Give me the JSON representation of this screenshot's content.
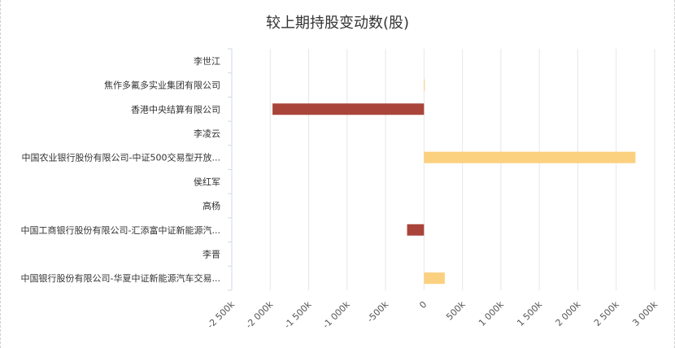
{
  "chart_data": {
    "type": "bar",
    "orientation": "horizontal",
    "title": "较上期持股变动数(股)",
    "categories": [
      "李世江",
      "焦作多氟多实业集团有限公司",
      "香港中央结算有限公司",
      "李凌云",
      "中国农业银行股份有限公司-中证500交易型开放...",
      "侯红军",
      "高杨",
      "中国工商银行股份有限公司-汇添富中证新能源汽...",
      "李晋",
      "中国银行股份有限公司-华夏中证新能源汽车交易..."
    ],
    "values": [
      0,
      10000,
      -1970000,
      0,
      2750000,
      0,
      0,
      -220000,
      0,
      270000
    ],
    "xlim": [
      -2500000,
      3000000
    ],
    "xticks": [
      -2500000,
      -2000000,
      -1500000,
      -1000000,
      -500000,
      0,
      500000,
      1000000,
      1500000,
      2000000,
      2500000,
      3000000
    ],
    "xtick_labels": [
      "-2 500k",
      "-2 000k",
      "-1 500k",
      "-1 000k",
      "-500k",
      "0",
      "500k",
      "1 000k",
      "1 500k",
      "2 000k",
      "2 500k",
      "3 000k"
    ],
    "grid": true,
    "colors": {
      "positive": "#fbd07e",
      "negative": "#a9443a",
      "grid": "#e6e6e6",
      "axis": "#cfd9e6"
    }
  }
}
